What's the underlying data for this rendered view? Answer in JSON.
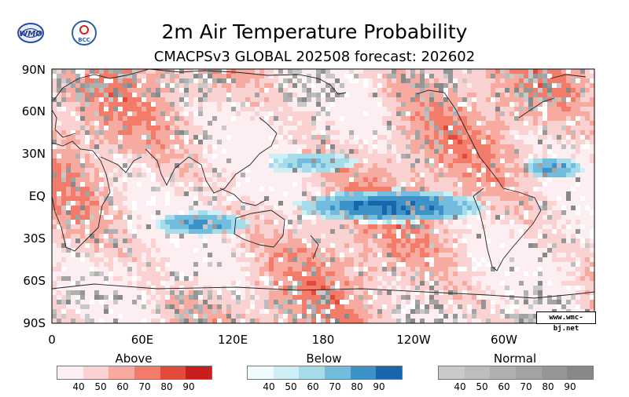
{
  "header": {
    "title": "2m Air Temperature Probability",
    "subtitle": "CMACPSv3 GLOBAL 202508 forecast: 202602"
  },
  "logos": {
    "left": "WMO",
    "right": "BCC"
  },
  "map": {
    "lat_labels": [
      "90N",
      "60N",
      "30N",
      "EQ",
      "30S",
      "60S",
      "90S"
    ],
    "lon_labels": [
      "0",
      "60E",
      "120E",
      "180",
      "120W",
      "60W"
    ],
    "credit": "www.wmc-bj.net"
  },
  "legend": {
    "above": {
      "title": "Above",
      "ticks": [
        "40",
        "50",
        "60",
        "70",
        "80",
        "90"
      ],
      "colors": [
        "#fdeef2",
        "#fbd2d2",
        "#f7aaa0",
        "#f27b6a",
        "#e44a3c",
        "#c81e1e"
      ]
    },
    "below": {
      "title": "Below",
      "ticks": [
        "40",
        "50",
        "60",
        "70",
        "80",
        "90"
      ],
      "colors": [
        "#eefafb",
        "#cdeff5",
        "#a6dcea",
        "#72bcdd",
        "#3d92c8",
        "#1a66ad"
      ]
    },
    "normal": {
      "title": "Normal",
      "ticks": [
        "40",
        "50",
        "60",
        "70",
        "80",
        "90"
      ],
      "colors": [
        "#c9c9c9",
        "#bdbdbd",
        "#b0b0b0",
        "#a3a3a3",
        "#969696",
        "#888888"
      ]
    }
  },
  "colors": {
    "border": "#000000",
    "coast": "#222222"
  }
}
